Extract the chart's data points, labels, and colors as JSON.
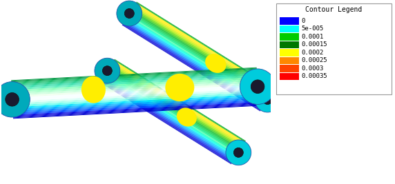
{
  "legend_title": "Contour Legend",
  "legend_labels": [
    "0",
    "5e-005",
    "0.0001",
    "0.00015",
    "0.0002",
    "0.00025",
    "0.0003",
    "0.00035"
  ],
  "legend_colors": [
    "#0000ff",
    "#00ffff",
    "#00cc00",
    "#007700",
    "#ffff00",
    "#ff8800",
    "#ff4400",
    "#ff0000"
  ],
  "background_color": "#ffffff",
  "figure_width": 5.72,
  "figure_height": 2.67,
  "dpi": 100
}
